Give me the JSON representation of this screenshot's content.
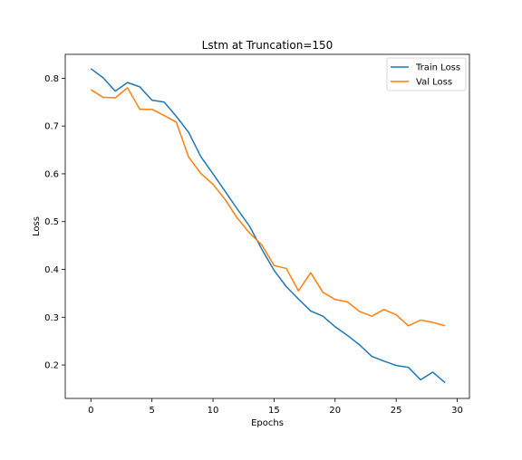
{
  "chart_data": {
    "type": "line",
    "title": "Lstm at Truncation=150",
    "xlabel": "Epochs",
    "ylabel": "Loss",
    "xlim": [
      -2.1,
      31.0
    ],
    "ylim": [
      0.13,
      0.85
    ],
    "xticks": [
      0,
      5,
      10,
      15,
      20,
      25,
      30
    ],
    "yticks": [
      0.2,
      0.3,
      0.4,
      0.5,
      0.6,
      0.7,
      0.8
    ],
    "xtick_labels": [
      "0",
      "5",
      "10",
      "15",
      "20",
      "25",
      "30"
    ],
    "ytick_labels": [
      "0.2",
      "0.3",
      "0.4",
      "0.5",
      "0.6",
      "0.7",
      "0.8"
    ],
    "grid": false,
    "legend_position": "top-right",
    "x": [
      0,
      1,
      2,
      3,
      4,
      5,
      6,
      7,
      8,
      9,
      10,
      11,
      12,
      13,
      14,
      15,
      16,
      17,
      18,
      19,
      20,
      21,
      22,
      23,
      24,
      25,
      26,
      27,
      28,
      29
    ],
    "series": [
      {
        "name": "Train Loss",
        "color": "#1f77b4",
        "values": [
          0.82,
          0.801,
          0.773,
          0.791,
          0.782,
          0.754,
          0.75,
          0.72,
          0.687,
          0.636,
          0.6,
          0.563,
          0.526,
          0.49,
          0.442,
          0.398,
          0.364,
          0.338,
          0.313,
          0.302,
          0.28,
          0.262,
          0.242,
          0.218,
          0.208,
          0.199,
          0.195,
          0.169,
          0.185,
          0.163
        ]
      },
      {
        "name": "Val Loss",
        "color": "#ff7f0e",
        "values": [
          0.776,
          0.76,
          0.759,
          0.78,
          0.735,
          0.735,
          0.722,
          0.708,
          0.635,
          0.601,
          0.578,
          0.546,
          0.507,
          0.476,
          0.451,
          0.408,
          0.402,
          0.355,
          0.393,
          0.352,
          0.337,
          0.332,
          0.312,
          0.302,
          0.316,
          0.305,
          0.282,
          0.294,
          0.289,
          0.282
        ]
      }
    ]
  }
}
